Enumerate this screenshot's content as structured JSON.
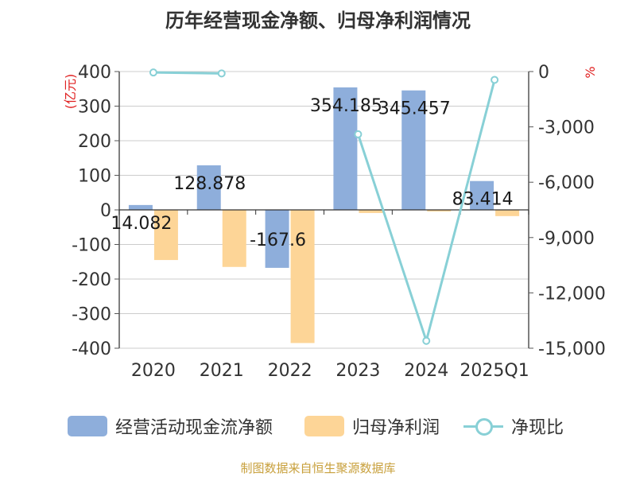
{
  "chart_data": {
    "type": "bar",
    "title": "历年经营现金净额、归母净利润情况",
    "left_unit": "(亿元)",
    "right_unit": "%",
    "categories": [
      "2020",
      "2021",
      "2022",
      "2023",
      "2024",
      "2025Q1"
    ],
    "left_ticks": [
      "400",
      "300",
      "200",
      "100",
      "0",
      "-100",
      "-200",
      "-300",
      "-400"
    ],
    "right_ticks": [
      "0",
      "-3,000",
      "-6,000",
      "-9,000",
      "-12,000",
      "-15,000"
    ],
    "ylim_left": [
      -400,
      400
    ],
    "ylim_right": [
      -15000,
      0
    ],
    "series": [
      {
        "name": "经营活动现金流净额",
        "kind": "bar",
        "color": "#8eaedb",
        "values": [
          14.082,
          128.878,
          -167.6,
          354.185,
          345.457,
          83.414
        ],
        "labels": [
          "14.082",
          "128.878",
          "-167.6",
          "354.185",
          "345.457",
          "83.414"
        ]
      },
      {
        "name": "归母净利润",
        "kind": "bar",
        "color": "#fdd597",
        "values": [
          -145,
          -165,
          -385,
          -9,
          -2,
          -18
        ]
      },
      {
        "name": "净现比",
        "kind": "line",
        "color": "#88d0d6",
        "values": [
          -50,
          -100,
          null,
          -3400,
          -14600,
          -450
        ]
      }
    ]
  },
  "source": "制图数据来自恒生聚源数据库"
}
